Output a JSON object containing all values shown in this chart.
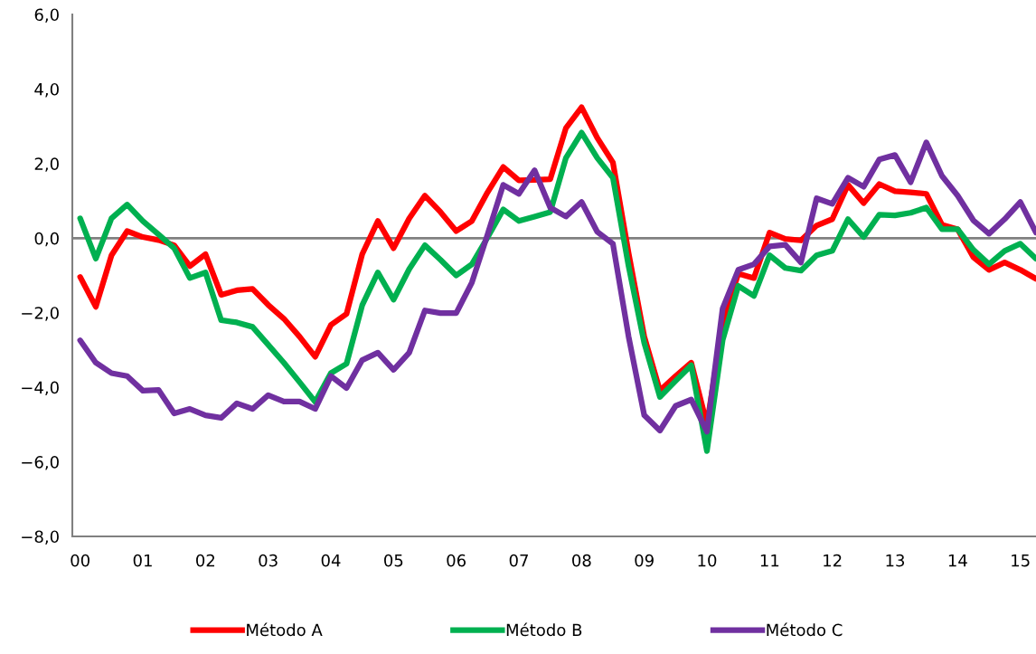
{
  "chart_data": {
    "type": "line",
    "categories": [
      "00",
      null,
      null,
      null,
      "01",
      null,
      null,
      null,
      "02",
      null,
      null,
      null,
      "03",
      null,
      null,
      null,
      "04",
      null,
      null,
      null,
      "05",
      null,
      null,
      null,
      "06",
      null,
      null,
      null,
      "07",
      null,
      null,
      null,
      "08",
      null,
      null,
      null,
      "09",
      null,
      null,
      null,
      "10",
      null,
      null,
      null,
      "11",
      null,
      null,
      null,
      "12",
      null,
      null,
      null,
      "13",
      null,
      null,
      null,
      "14",
      null,
      null,
      null,
      "15",
      null
    ],
    "series": [
      {
        "name": "Método A",
        "color": "#ff0000",
        "values": [
          -1.04,
          -1.84,
          -0.46,
          0.19,
          0.03,
          -0.05,
          -0.19,
          -0.75,
          -0.43,
          -1.52,
          -1.4,
          -1.36,
          -1.79,
          -2.16,
          -2.64,
          -3.18,
          -2.33,
          -2.03,
          -0.43,
          0.46,
          -0.27,
          0.53,
          1.14,
          0.7,
          0.19,
          0.46,
          1.23,
          1.91,
          1.55,
          1.56,
          1.58,
          2.95,
          3.51,
          2.69,
          2.03,
          -0.4,
          -2.64,
          -4.09,
          -3.7,
          -3.34,
          -5.0,
          -2.3,
          -0.95,
          -1.07,
          0.15,
          -0.02,
          -0.06,
          0.34,
          0.51,
          1.43,
          0.94,
          1.45,
          1.26,
          1.23,
          1.19,
          0.36,
          0.24,
          -0.51,
          -0.85,
          -0.65,
          -0.85,
          -1.09
        ]
      },
      {
        "name": "Método B",
        "color": "#00b050",
        "values": [
          0.53,
          -0.55,
          0.53,
          0.9,
          0.46,
          0.1,
          -0.27,
          -1.07,
          -0.92,
          -2.2,
          -2.26,
          -2.38,
          -2.86,
          -3.34,
          -3.86,
          -4.39,
          -3.62,
          -3.37,
          -1.8,
          -0.92,
          -1.65,
          -0.83,
          -0.19,
          -0.58,
          -1.0,
          -0.7,
          0.02,
          0.77,
          0.46,
          0.58,
          0.7,
          2.15,
          2.83,
          2.15,
          1.62,
          -0.75,
          -2.81,
          -4.26,
          -3.83,
          -3.41,
          -5.71,
          -2.74,
          -1.28,
          -1.55,
          -0.46,
          -0.8,
          -0.87,
          -0.46,
          -0.34,
          0.51,
          0.03,
          0.63,
          0.61,
          0.68,
          0.82,
          0.24,
          0.24,
          -0.31,
          -0.7,
          -0.34,
          -0.15,
          -0.55
        ]
      },
      {
        "name": "Método C",
        "color": "#7030a0",
        "values": [
          -2.74,
          -3.34,
          -3.62,
          -3.7,
          -4.09,
          -4.07,
          -4.7,
          -4.58,
          -4.75,
          -4.82,
          -4.43,
          -4.58,
          -4.21,
          -4.38,
          -4.38,
          -4.58,
          -3.7,
          -4.02,
          -3.27,
          -3.07,
          -3.53,
          -3.07,
          -1.94,
          -2.01,
          -2.01,
          -1.19,
          0.1,
          1.43,
          1.19,
          1.82,
          0.82,
          0.58,
          0.97,
          0.17,
          -0.15,
          -2.64,
          -4.75,
          -5.16,
          -4.5,
          -4.33,
          -5.19,
          -1.89,
          -0.85,
          -0.7,
          -0.22,
          -0.18,
          -0.65,
          1.07,
          0.92,
          1.62,
          1.38,
          2.11,
          2.23,
          1.5,
          2.57,
          1.67,
          1.14,
          0.48,
          0.12,
          0.51,
          0.97,
          0.15
        ]
      }
    ],
    "ylim": [
      -8,
      6
    ],
    "yticks": [
      {
        "value": -8,
        "label": "−8,0"
      },
      {
        "value": -6,
        "label": "−6,0"
      },
      {
        "value": -4,
        "label": "−4,0"
      },
      {
        "value": -2,
        "label": "−2,0"
      },
      {
        "value": 0,
        "label": "0,0"
      },
      {
        "value": 2,
        "label": "2,0"
      },
      {
        "value": 4,
        "label": "4,0"
      },
      {
        "value": 6,
        "label": "6,0"
      }
    ],
    "ref_lines": [
      {
        "axis": "y",
        "value": 0,
        "color": "#808080"
      }
    ],
    "grid": false,
    "legend": "bottom",
    "marker": "none",
    "line_style": "solid"
  }
}
